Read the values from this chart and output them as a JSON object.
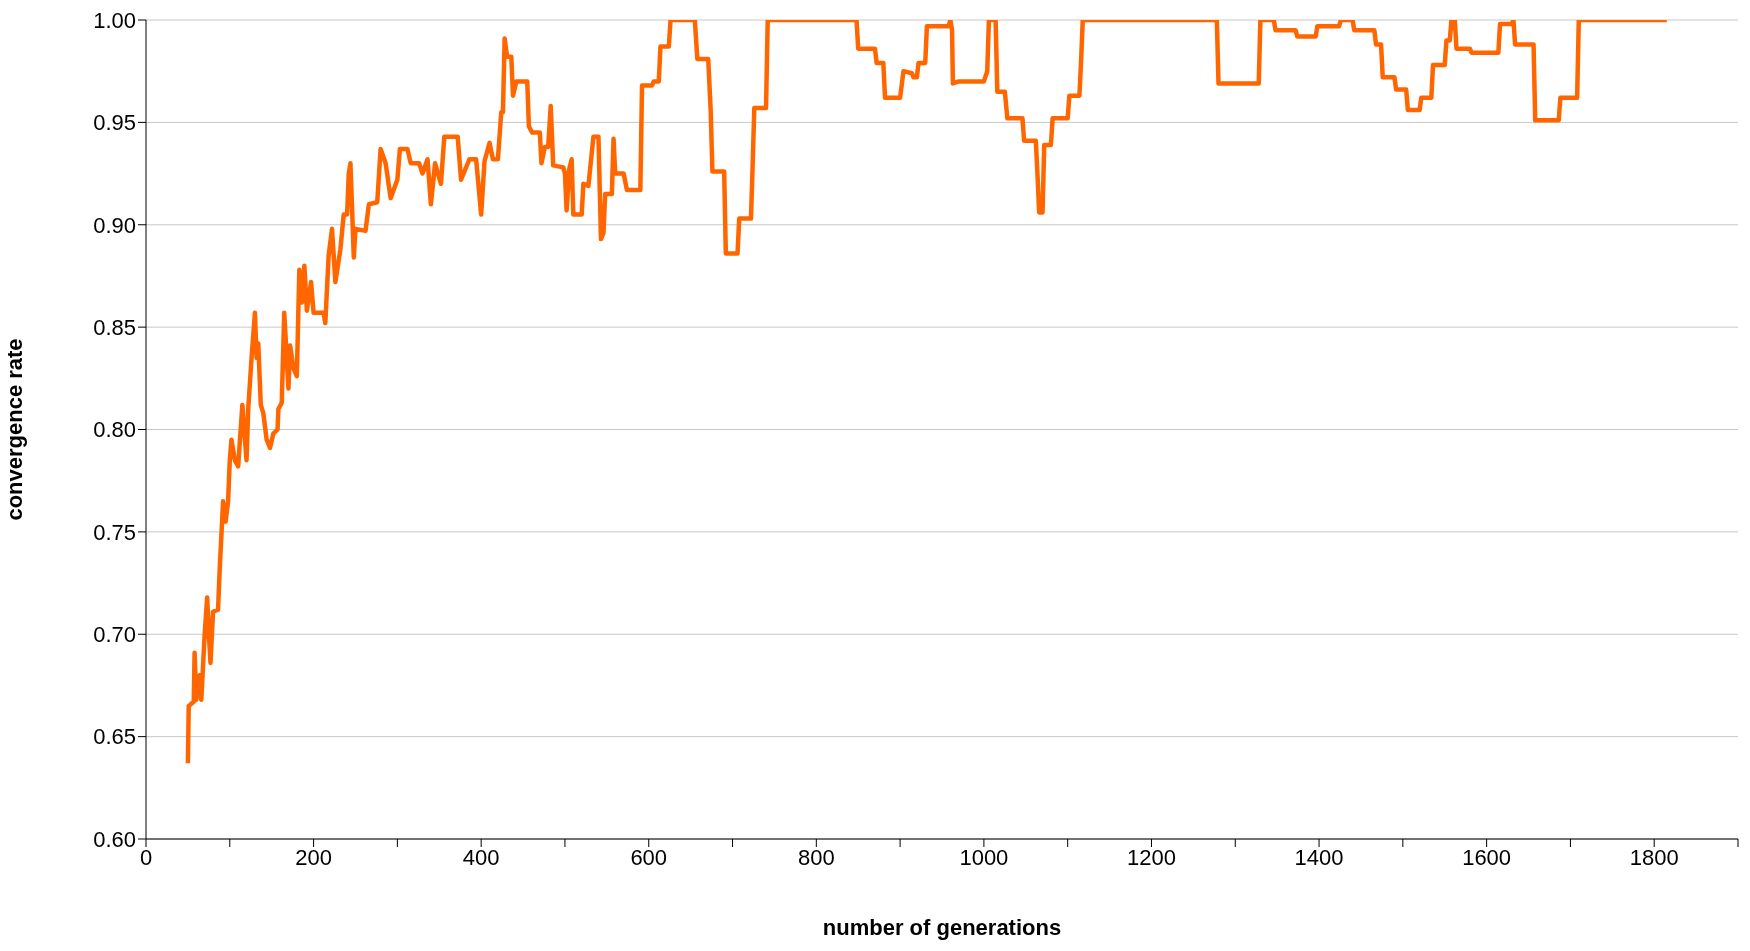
{
  "chart_data": {
    "type": "line",
    "xlabel": "number of generations",
    "ylabel": "convergence rate",
    "xlim": [
      0,
      1900
    ],
    "xticks": [
      0,
      {
        "value": 100,
        "label": null
      },
      200,
      {
        "value": 300,
        "label": null
      },
      400,
      {
        "value": 500,
        "label": null
      },
      600,
      {
        "value": 700,
        "label": null
      },
      800,
      {
        "value": 900,
        "label": null
      },
      1000,
      {
        "value": 1100,
        "label": null
      },
      1200,
      {
        "value": 1300,
        "label": null
      },
      1400,
      {
        "value": 1500,
        "label": null
      },
      1600,
      {
        "value": 1700,
        "label": null
      },
      1800,
      {
        "value": 1900,
        "label": null
      }
    ],
    "ylim": [
      0.6,
      1.0
    ],
    "yticks": [
      {
        "value": 0.6,
        "label": "0.60"
      },
      {
        "value": 0.65,
        "label": "0.65"
      },
      {
        "value": 0.7,
        "label": "0.70"
      },
      {
        "value": 0.75,
        "label": "0.75"
      },
      {
        "value": 0.8,
        "label": "0.80"
      },
      {
        "value": 0.85,
        "label": "0.85"
      },
      {
        "value": 0.9,
        "label": "0.90"
      },
      {
        "value": 0.95,
        "label": "0.95"
      },
      {
        "value": 1.0,
        "label": "1.00"
      }
    ],
    "grid": "y",
    "marker": "none",
    "line_style": "solid",
    "series": [
      {
        "color": "#ff6600",
        "x": [
          50,
          51,
          57,
          58,
          60,
          64,
          66,
          70,
          73,
          75,
          77,
          80,
          86,
          88,
          92,
          95,
          98,
          100,
          102,
          106,
          110,
          115,
          120,
          122,
          126,
          130,
          132,
          134,
          137,
          140,
          144,
          148,
          152,
          157,
          158,
          162,
          165,
          170,
          172,
          176,
          180,
          183,
          186,
          189,
          192,
          197,
          200,
          212,
          214,
          218,
          222,
          226,
          232,
          236,
          240,
          242,
          244,
          248,
          250,
          262,
          266,
          276,
          280,
          286,
          292,
          300,
          303,
          312,
          316,
          326,
          330,
          336,
          340,
          345,
          352,
          356,
          372,
          376,
          386,
          394,
          400,
          404,
          410,
          414,
          420,
          424,
          426,
          428,
          431,
          436,
          438,
          442,
          455,
          457,
          461,
          470,
          472,
          476,
          480,
          483,
          486,
          498,
          500,
          502,
          505,
          508,
          510,
          520,
          522,
          528,
          534,
          540,
          543,
          546,
          548,
          556,
          558,
          560,
          570,
          574,
          590,
          592,
          604,
          606,
          612,
          614,
          624,
          626,
          655,
          658,
          671,
          674,
          676,
          690,
          692,
          706,
          708,
          722,
          724,
          726,
          740,
          742,
          848,
          850,
          870,
          872,
          880,
          882,
          900,
          904,
          914,
          916,
          920,
          922,
          930,
          932,
          958,
          960,
          962,
          963,
          970,
          1000,
          1004,
          1006,
          1014,
          1016,
          1025,
          1028,
          1046,
          1048,
          1062,
          1064,
          1066,
          1070,
          1072,
          1080,
          1082,
          1100,
          1102,
          1114,
          1116,
          1118,
          1278,
          1280,
          1328,
          1330,
          1346,
          1348,
          1372,
          1374,
          1396,
          1398,
          1424,
          1426,
          1440,
          1442,
          1466,
          1468,
          1474,
          1476,
          1490,
          1492,
          1504,
          1506,
          1520,
          1522,
          1534,
          1536,
          1550,
          1552,
          1556,
          1558,
          1562,
          1564,
          1580,
          1582,
          1614,
          1616,
          1630,
          1632,
          1634,
          1656,
          1658,
          1686,
          1688,
          1708,
          1710,
          1815
        ],
        "values": [
          0.637,
          0.665,
          0.667,
          0.691,
          0.668,
          0.68,
          0.668,
          0.7,
          0.718,
          0.7,
          0.686,
          0.711,
          0.712,
          0.732,
          0.765,
          0.755,
          0.765,
          0.785,
          0.795,
          0.785,
          0.782,
          0.812,
          0.785,
          0.81,
          0.835,
          0.857,
          0.835,
          0.842,
          0.812,
          0.808,
          0.795,
          0.791,
          0.798,
          0.8,
          0.81,
          0.813,
          0.857,
          0.82,
          0.841,
          0.83,
          0.826,
          0.878,
          0.862,
          0.88,
          0.858,
          0.872,
          0.857,
          0.857,
          0.852,
          0.885,
          0.898,
          0.872,
          0.888,
          0.905,
          0.905,
          0.925,
          0.93,
          0.884,
          0.898,
          0.897,
          0.91,
          0.911,
          0.937,
          0.93,
          0.913,
          0.922,
          0.937,
          0.937,
          0.93,
          0.93,
          0.925,
          0.932,
          0.91,
          0.93,
          0.92,
          0.943,
          0.943,
          0.922,
          0.932,
          0.932,
          0.905,
          0.931,
          0.94,
          0.932,
          0.932,
          0.955,
          0.955,
          0.991,
          0.982,
          0.982,
          0.963,
          0.97,
          0.97,
          0.948,
          0.945,
          0.945,
          0.93,
          0.938,
          0.938,
          0.958,
          0.929,
          0.928,
          0.925,
          0.907,
          0.927,
          0.932,
          0.905,
          0.905,
          0.92,
          0.919,
          0.943,
          0.943,
          0.893,
          0.896,
          0.915,
          0.915,
          0.942,
          0.925,
          0.925,
          0.917,
          0.917,
          0.968,
          0.968,
          0.97,
          0.97,
          0.987,
          0.987,
          1.0,
          1.0,
          0.981,
          0.981,
          0.955,
          0.926,
          0.926,
          0.886,
          0.886,
          0.903,
          0.903,
          0.929,
          0.957,
          0.957,
          1.0,
          1.0,
          0.986,
          0.986,
          0.979,
          0.979,
          0.962,
          0.962,
          0.975,
          0.974,
          0.972,
          0.972,
          0.979,
          0.979,
          0.997,
          0.997,
          1.0,
          0.995,
          0.969,
          0.97,
          0.97,
          0.975,
          1.0,
          1.0,
          0.965,
          0.965,
          0.952,
          0.952,
          0.941,
          0.941,
          0.924,
          0.906,
          0.906,
          0.939,
          0.939,
          0.952,
          0.952,
          0.963,
          0.963,
          0.98,
          1.0,
          1.0,
          0.969,
          0.969,
          1.0,
          1.0,
          0.995,
          0.995,
          0.992,
          0.992,
          0.997,
          0.997,
          1.0,
          1.0,
          0.995,
          0.995,
          0.988,
          0.988,
          0.972,
          0.972,
          0.966,
          0.966,
          0.956,
          0.956,
          0.962,
          0.962,
          0.978,
          0.978,
          0.99,
          0.99,
          1.0,
          1.0,
          0.986,
          0.986,
          0.984,
          0.984,
          0.998,
          0.998,
          1.0,
          0.988,
          0.988,
          0.951,
          0.951,
          0.962,
          0.962,
          1.0,
          1.0
        ]
      }
    ]
  }
}
